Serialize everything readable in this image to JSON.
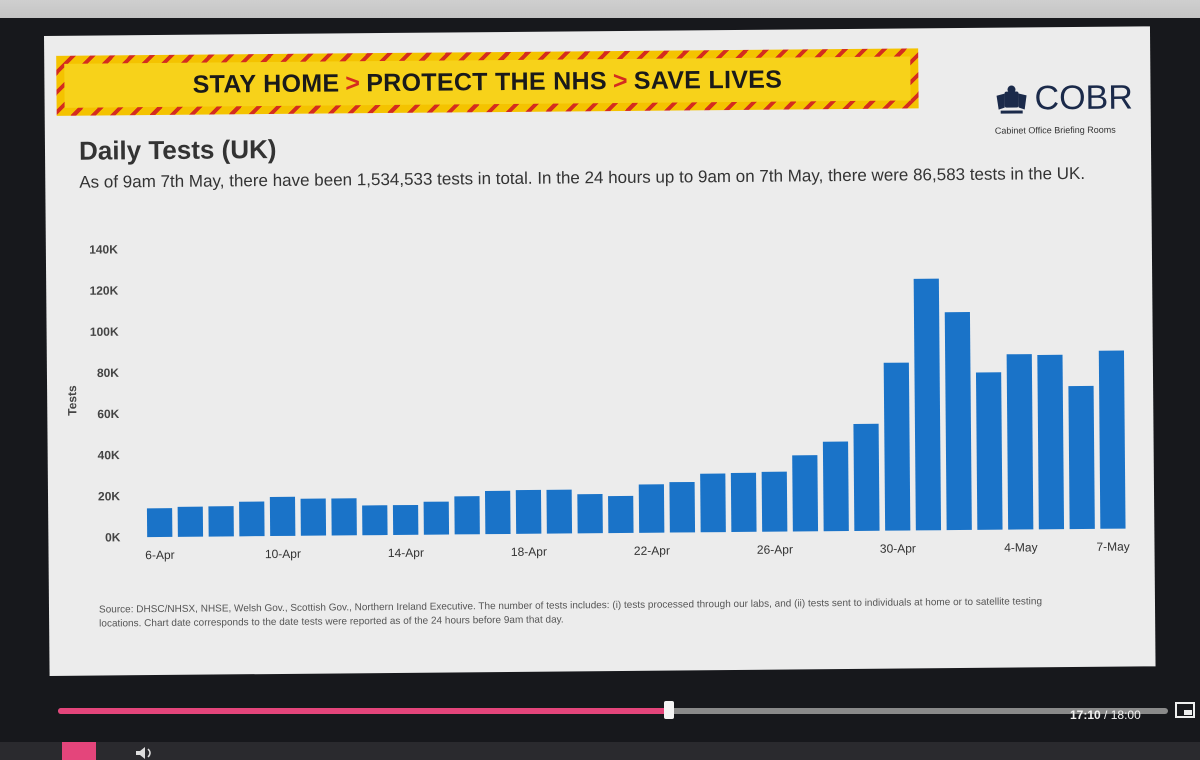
{
  "banner": {
    "part1": "STAY HOME",
    "part2": "PROTECT THE NHS",
    "part3": "SAVE LIVES",
    "separator": ">"
  },
  "logo": {
    "title": "COBR",
    "subtitle": "Cabinet Office Briefing Rooms",
    "icon": "crest-icon"
  },
  "chart_data": {
    "type": "bar",
    "title": "Daily Tests (UK)",
    "subtitle": "As of 9am 7th May, there have been 1,534,533 tests in total. In the 24 hours up to 9am on 7th May, there were 86,583 tests in the UK.",
    "ylabel": "Tests",
    "xlabel": "",
    "ylim": [
      0,
      140000
    ],
    "yticks": [
      "0K",
      "20K",
      "40K",
      "60K",
      "80K",
      "100K",
      "120K",
      "140K"
    ],
    "xtick_labels": [
      "6-Apr",
      "10-Apr",
      "14-Apr",
      "18-Apr",
      "22-Apr",
      "26-Apr",
      "30-Apr",
      "4-May",
      "7-May"
    ],
    "categories": [
      "6-Apr",
      "7-Apr",
      "8-Apr",
      "9-Apr",
      "10-Apr",
      "11-Apr",
      "12-Apr",
      "13-Apr",
      "14-Apr",
      "15-Apr",
      "16-Apr",
      "17-Apr",
      "18-Apr",
      "19-Apr",
      "20-Apr",
      "21-Apr",
      "22-Apr",
      "23-Apr",
      "24-Apr",
      "25-Apr",
      "26-Apr",
      "27-Apr",
      "28-Apr",
      "29-Apr",
      "30-Apr",
      "1-May",
      "2-May",
      "3-May",
      "4-May",
      "5-May",
      "6-May",
      "7-May"
    ],
    "values": [
      14000,
      14600,
      14700,
      16800,
      19000,
      18000,
      18000,
      14500,
      14500,
      16000,
      18500,
      21000,
      21300,
      21300,
      19000,
      18000,
      23500,
      24500,
      28500,
      28700,
      29100,
      37000,
      43500,
      52000,
      81600,
      122300,
      105900,
      76500,
      85200,
      84800,
      69500,
      86600
    ],
    "grid": false,
    "legend": "none",
    "colors": {
      "bar": "#1a73c8"
    }
  },
  "source_note": "Source: DHSC/NHSX, NHSE, Welsh Gov., Scottish Gov., Northern Ireland Executive. The number of tests includes: (i) tests processed through our labs, and (ii) tests sent to individuals at home or to satellite testing locations. Chart date corresponds to the date tests were reported as of the 24 hours before 9am that day.",
  "player": {
    "current_time": "17:10",
    "separator": " / ",
    "total_time": "18:00",
    "progress": 0.55,
    "accent": "#e4457b",
    "cast_icon": "cast-icon",
    "play_icon": "play-icon",
    "volume_icon": "volume-icon"
  }
}
